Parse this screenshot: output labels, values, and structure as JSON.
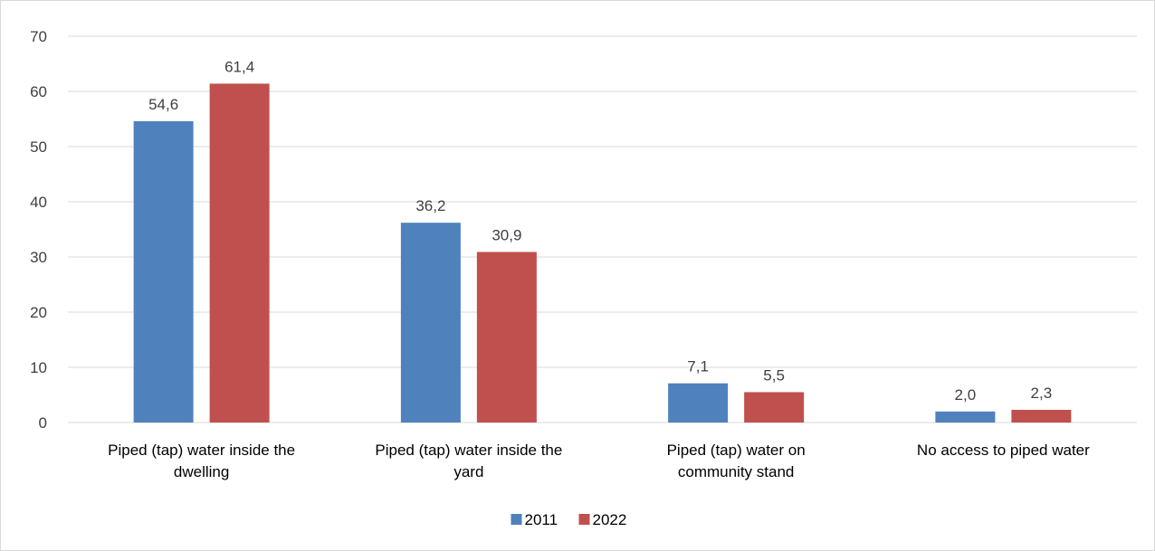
{
  "chart_data": {
    "type": "bar",
    "categories": [
      [
        "Piped (tap) water inside the",
        "dwelling"
      ],
      [
        "Piped (tap) water inside the",
        "yard"
      ],
      [
        "Piped (tap) water on",
        "community stand"
      ],
      [
        "No access to piped water"
      ]
    ],
    "series": [
      {
        "name": "2011",
        "color": "#4f81bd",
        "values": [
          54.6,
          36.2,
          7.1,
          2.0
        ],
        "labels": [
          "54,6",
          "36,2",
          "7,1",
          "2,0"
        ]
      },
      {
        "name": "2022",
        "color": "#c0504d",
        "values": [
          61.4,
          30.9,
          5.5,
          2.3
        ],
        "labels": [
          "61,4",
          "30,9",
          "5,5",
          "2,3"
        ]
      }
    ],
    "ylim": [
      0,
      70
    ],
    "yticks": [
      0,
      10,
      20,
      30,
      40,
      50,
      60,
      70
    ],
    "grid": true,
    "legend_position": "bottom",
    "title": "",
    "xlabel": "",
    "ylabel": ""
  }
}
